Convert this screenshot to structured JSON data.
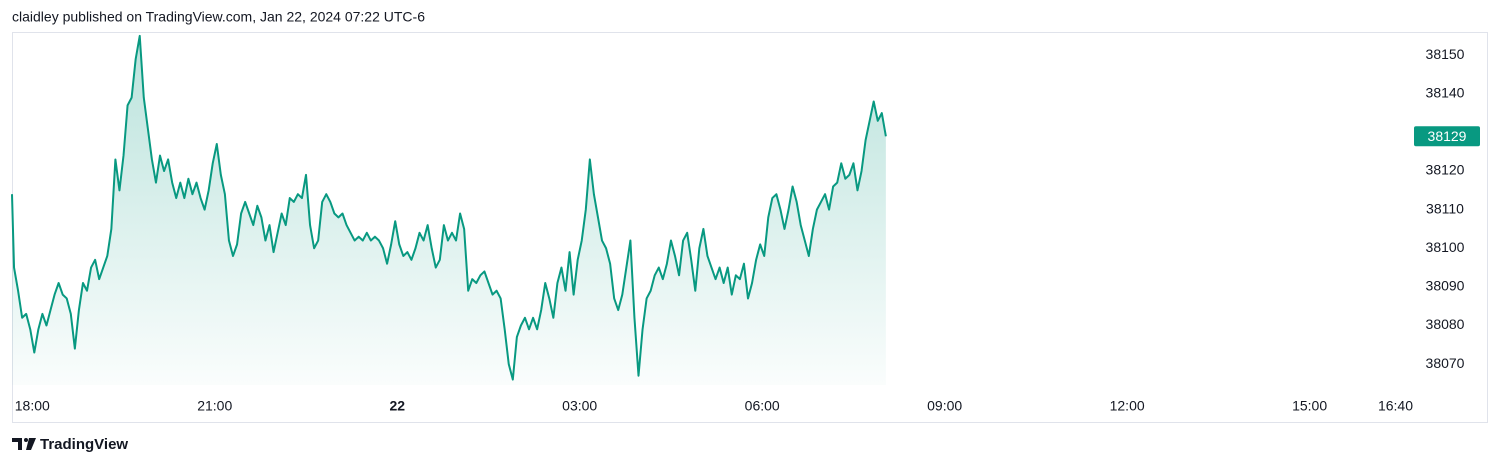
{
  "chart_data": {
    "type": "area",
    "title": "claidley published on TradingView.com, Jan 22, 2024 07:22 UTC-6",
    "source": "TradingView",
    "color": "#089981",
    "grid": false,
    "xlim": [
      -20,
      1360
    ],
    "xticks": [
      {
        "value": 0,
        "label": "18:00"
      },
      {
        "value": 180,
        "label": "21:00"
      },
      {
        "value": 360,
        "label": "22"
      },
      {
        "value": 540,
        "label": "03:00"
      },
      {
        "value": 720,
        "label": "06:00"
      },
      {
        "value": 900,
        "label": "09:00"
      },
      {
        "value": 1080,
        "label": "12:00"
      },
      {
        "value": 1260,
        "label": "15:00"
      },
      {
        "value": 1360,
        "label": "16:40"
      }
    ],
    "ylim": [
      38062,
      38156
    ],
    "yticks": [
      38070,
      38080,
      38090,
      38100,
      38110,
      38120,
      38130,
      38140,
      38150
    ],
    "x": [
      -20,
      -18,
      -14,
      -10,
      -6,
      -2,
      2,
      6,
      10,
      14,
      18,
      22,
      26,
      30,
      34,
      38,
      42,
      46,
      50,
      54,
      58,
      62,
      66,
      70,
      74,
      78,
      82,
      86,
      90,
      94,
      98,
      102,
      106,
      110,
      114,
      118,
      122,
      126,
      130,
      134,
      138,
      142,
      146,
      150,
      154,
      158,
      162,
      166,
      170,
      174,
      178,
      182,
      186,
      190,
      194,
      198,
      202,
      206,
      210,
      214,
      218,
      222,
      226,
      230,
      234,
      238,
      242,
      246,
      250,
      254,
      258,
      262,
      266,
      270,
      274,
      278,
      282,
      286,
      290,
      294,
      298,
      302,
      306,
      310,
      314,
      318,
      322,
      326,
      330,
      334,
      338,
      342,
      346,
      350,
      354,
      358,
      362,
      366,
      370,
      374,
      378,
      382,
      386,
      390,
      394,
      398,
      402,
      406,
      410,
      414,
      418,
      422,
      426,
      430,
      434,
      438,
      442,
      446,
      450,
      454,
      458,
      462,
      466,
      470,
      474,
      478,
      482,
      486,
      490,
      494,
      498,
      502,
      506,
      510,
      514,
      518,
      522,
      526,
      530,
      534,
      538,
      542,
      546,
      550,
      554,
      558,
      562,
      566,
      570,
      574,
      578,
      582,
      586,
      590,
      594,
      598,
      602,
      606,
      610,
      614,
      618,
      622,
      626,
      630,
      634,
      638,
      642,
      646,
      650,
      654,
      658,
      662,
      666,
      670,
      674,
      678,
      682,
      686,
      690,
      694,
      698,
      702,
      706,
      710,
      714,
      718,
      722,
      726,
      730,
      734,
      738,
      742,
      746,
      750,
      754,
      758,
      762,
      766,
      770,
      774,
      778,
      782,
      786,
      790,
      794,
      798,
      802,
      806,
      810,
      814,
      818,
      822,
      826,
      830,
      834,
      838,
      842
    ],
    "values": [
      38114,
      38095,
      38089,
      38082,
      38083,
      38079,
      38073,
      38079,
      38083,
      38080,
      38084,
      38088,
      38091,
      38088,
      38087,
      38083,
      38074,
      38084,
      38091,
      38089,
      38095,
      38097,
      38092,
      38095,
      38098,
      38105,
      38123,
      38115,
      38124,
      38137,
      38139,
      38149,
      38155,
      38139,
      38131,
      38123,
      38117,
      38124,
      38120,
      38123,
      38117,
      38113,
      38117,
      38113,
      38118,
      38114,
      38117,
      38113,
      38110,
      38115,
      38122,
      38127,
      38119,
      38114,
      38102,
      38098,
      38101,
      38109,
      38112,
      38109,
      38106,
      38111,
      38108,
      38102,
      38106,
      38099,
      38104,
      38109,
      38106,
      38113,
      38112,
      38114,
      38113,
      38119,
      38106,
      38100,
      38102,
      38112,
      38114,
      38112,
      38109,
      38108,
      38109,
      38106,
      38104,
      38102,
      38103,
      38102,
      38104,
      38102,
      38103,
      38102,
      38100,
      38096,
      38101,
      38107,
      38101,
      38098,
      38099,
      38097,
      38100,
      38104,
      38102,
      38106,
      38100,
      38095,
      38097,
      38106,
      38102,
      38104,
      38102,
      38109,
      38105,
      38089,
      38092,
      38091,
      38093,
      38094,
      38091,
      38088,
      38089,
      38087,
      38079,
      38070,
      38066,
      38077,
      38080,
      38082,
      38079,
      38082,
      38079,
      38084,
      38091,
      38087,
      38082,
      38091,
      38095,
      38089,
      38099,
      38088,
      38097,
      38102,
      38110,
      38123,
      38114,
      38108,
      38102,
      38100,
      38096,
      38087,
      38084,
      38088,
      38095,
      38102,
      38082,
      38067,
      38079,
      38087,
      38089,
      38093,
      38095,
      38092,
      38096,
      38102,
      38098,
      38093,
      38102,
      38104,
      38097,
      38089,
      38100,
      38105,
      38098,
      38095,
      38092,
      38095,
      38091,
      38095,
      38088,
      38093,
      38092,
      38096,
      38087,
      38091,
      38097,
      38101,
      38098,
      38108,
      38113,
      38114,
      38110,
      38105,
      38110,
      38116,
      38112,
      38106,
      38102,
      38098,
      38105,
      38110,
      38112,
      38114,
      38110,
      38116,
      38117,
      38122,
      38118,
      38119,
      38122,
      38115,
      38120,
      38128,
      38133,
      38138,
      38133,
      38135,
      38129
    ]
  }
}
